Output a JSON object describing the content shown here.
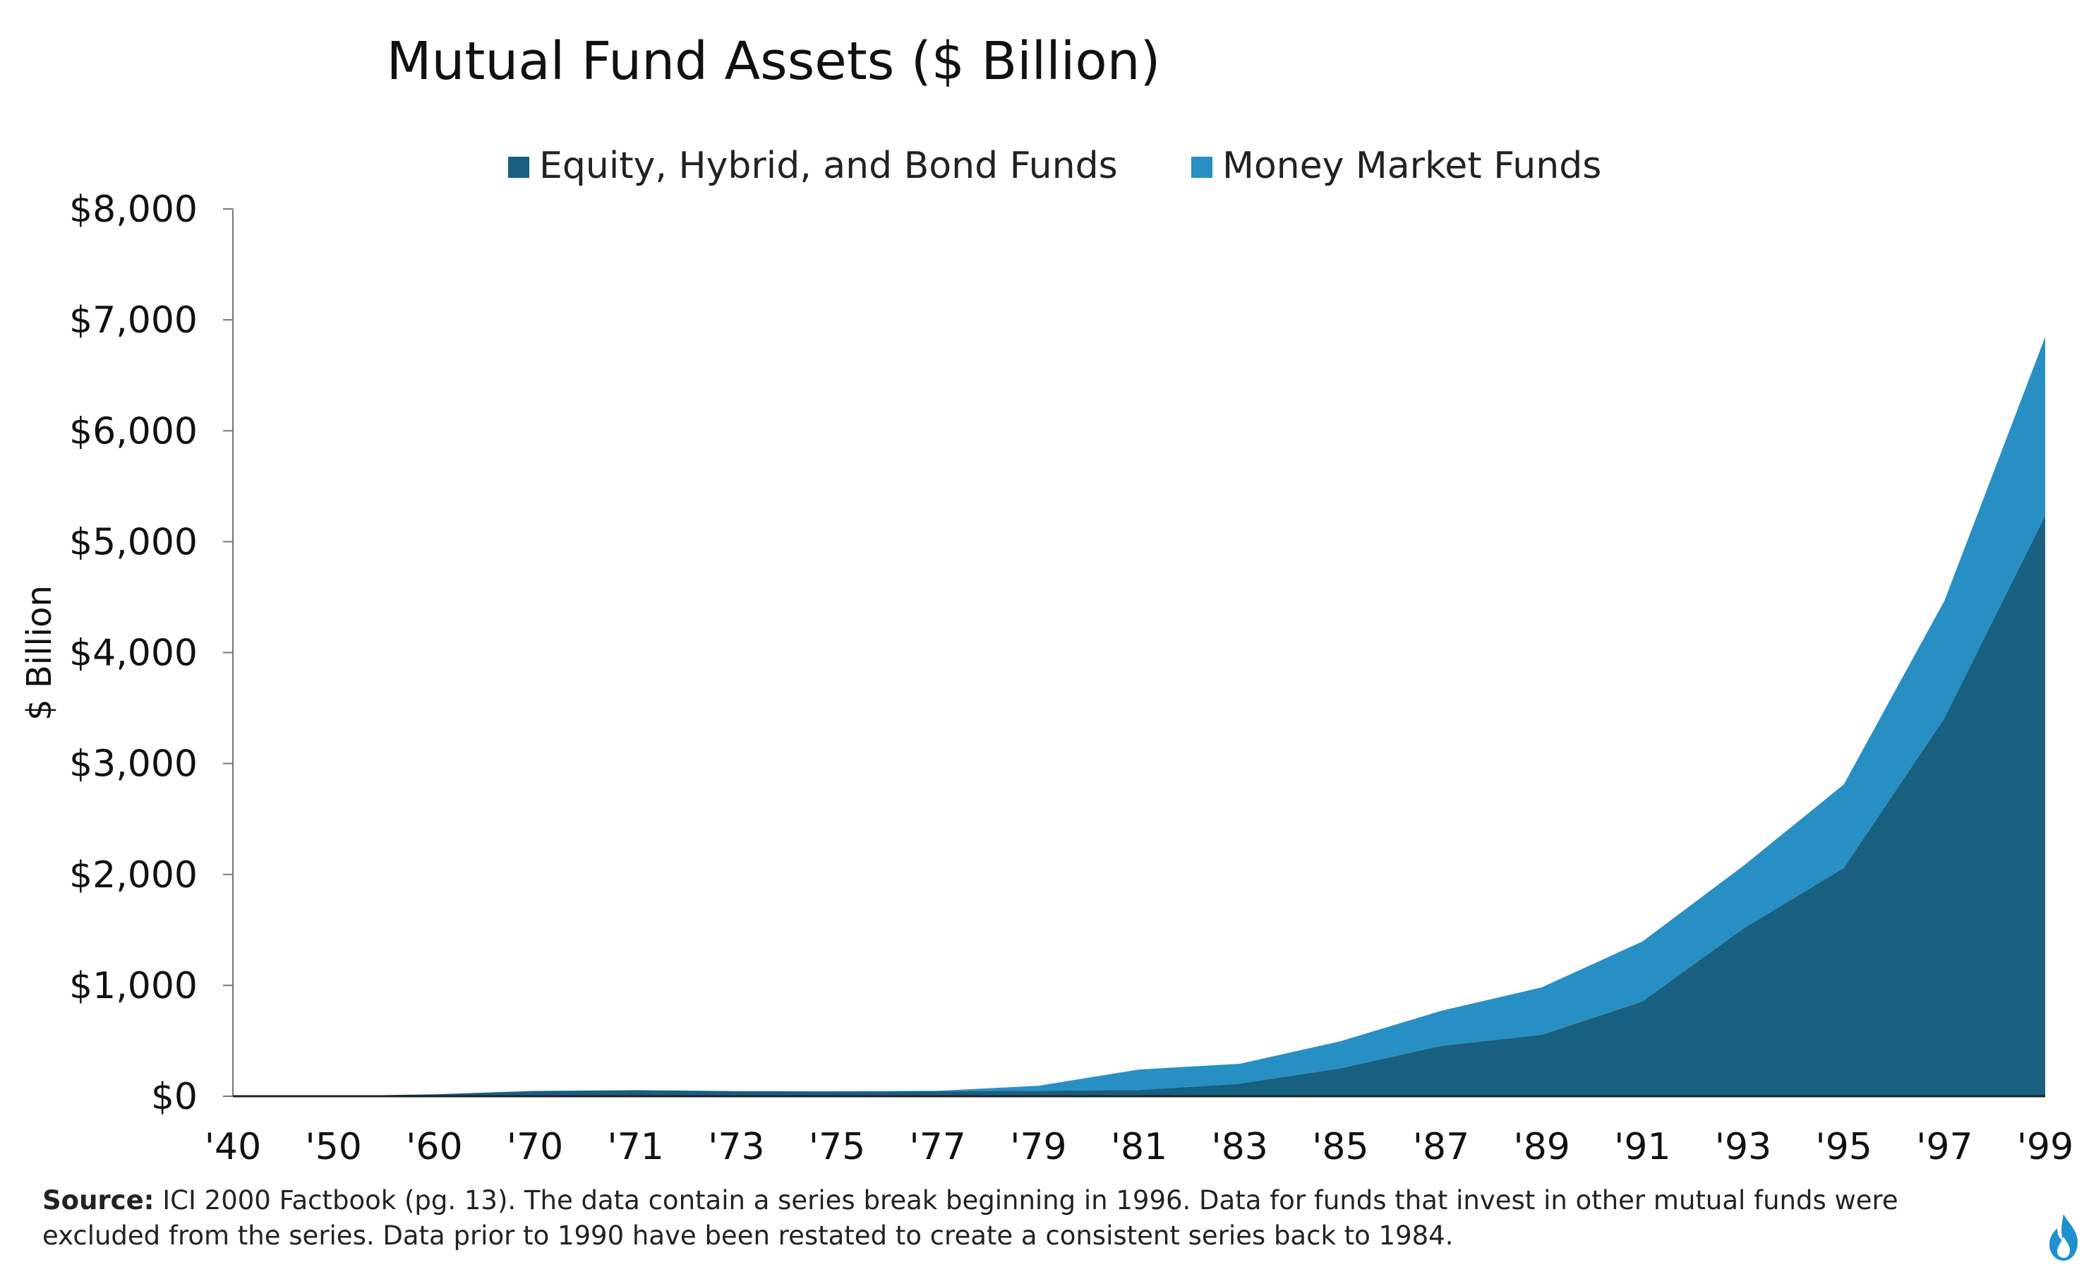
{
  "chart_data": {
    "type": "area",
    "title": "Mutual Fund Assets ($ Billion)",
    "ylabel": "$ Billion",
    "xlabel": "",
    "categories": [
      "'40",
      "'50",
      "'60",
      "'70",
      "'71",
      "'73",
      "'75",
      "'77",
      "'79",
      "'81",
      "'83",
      "'85",
      "'87",
      "'89",
      "'91",
      "'93",
      "'95",
      "'97",
      "'99"
    ],
    "series": [
      {
        "name": "Equity, Hybrid, and Bond Funds",
        "color": "#185f80",
        "values": [
          0.5,
          2.5,
          17,
          47.6,
          55,
          46.5,
          42.2,
          45,
          49,
          55.2,
          113.6,
          251.7,
          453.8,
          553.9,
          853.6,
          1510.1,
          2058.3,
          3409.3,
          5233.2
        ]
      },
      {
        "name": "Money Market Funds",
        "color": "#288fc4",
        "values": [
          0,
          0,
          0,
          0,
          0,
          0,
          3.7,
          3.9,
          45.2,
          186.3,
          179.4,
          243.8,
          316.1,
          428.1,
          542.4,
          565.3,
          753,
          1058.9,
          1613.1
        ]
      }
    ],
    "yticks": [
      0,
      1000,
      2000,
      3000,
      4000,
      5000,
      6000,
      7000,
      8000
    ],
    "ytick_labels": [
      "$0",
      "$1,000",
      "$2,000",
      "$3,000",
      "$4,000",
      "$5,000",
      "$6,000",
      "$7,000",
      "$8,000"
    ],
    "ylim": [
      0,
      8000
    ],
    "stacked": true,
    "grid": false,
    "legend_position": "top-center"
  },
  "source": {
    "label": "Source:",
    "text": " ICI 2000 Factbook (pg. 13). The data contain a series break beginning in 1996. Data for funds that invest in other mutual funds were excluded from the series. Data prior to 1990 have been restated to create a consistent series back to 1984."
  },
  "logo": {
    "icon": "flame-icon",
    "color": "#1f8fce"
  }
}
